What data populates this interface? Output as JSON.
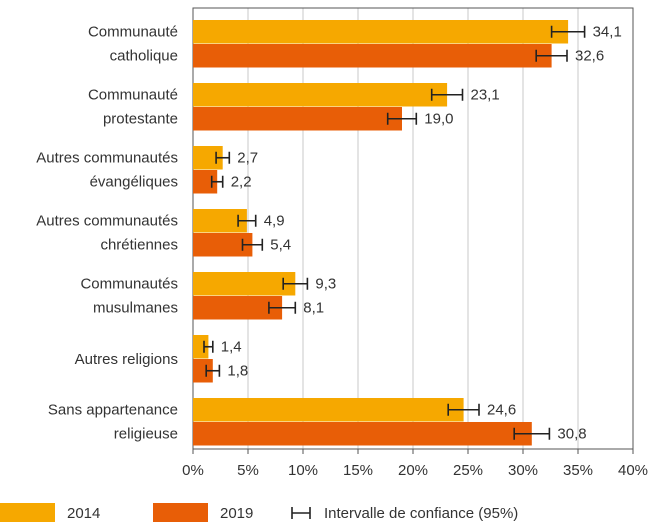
{
  "chart_data": {
    "type": "bar",
    "orientation": "horizontal",
    "categories": [
      [
        "Communauté",
        "catholique"
      ],
      [
        "Communauté",
        "protestante"
      ],
      [
        "Autres communautés",
        "évangéliques"
      ],
      [
        "Autres communautés",
        "chrétiennes"
      ],
      [
        "Communautés",
        "musulmanes"
      ],
      [
        "Autres religions"
      ],
      [
        "Sans appartenance",
        "religieuse"
      ]
    ],
    "series": [
      {
        "name": "2014",
        "color": "#f6a800",
        "values": [
          34.1,
          23.1,
          2.7,
          4.9,
          9.3,
          1.4,
          24.6
        ],
        "value_labels": [
          "34,1",
          "23,1",
          "2,7",
          "4,9",
          "9,3",
          "1,4",
          "24,6"
        ],
        "errors": [
          1.5,
          1.4,
          0.6,
          0.8,
          1.1,
          0.4,
          1.4
        ]
      },
      {
        "name": "2019",
        "color": "#e85e07",
        "values": [
          32.6,
          19.0,
          2.2,
          5.4,
          8.1,
          1.8,
          30.8
        ],
        "value_labels": [
          "32,6",
          "19,0",
          "2,2",
          "5,4",
          "8,1",
          "1,8",
          "30,8"
        ],
        "errors": [
          1.4,
          1.3,
          0.5,
          0.9,
          1.2,
          0.6,
          1.6
        ]
      }
    ],
    "error_legend": "Intervalle de confiance (95%)",
    "xlim": [
      0,
      40
    ],
    "xticks": [
      {
        "value": 0,
        "label": "0%"
      },
      {
        "value": 5,
        "label": "5%"
      },
      {
        "value": 10,
        "label": "10%"
      },
      {
        "value": 15,
        "label": "15%"
      },
      {
        "value": 20,
        "label": "20%"
      },
      {
        "value": 25,
        "label": "25%"
      },
      {
        "value": 30,
        "label": "30%"
      },
      {
        "value": 35,
        "label": "35%"
      },
      {
        "value": 40,
        "label": "40%"
      }
    ],
    "grid": true
  }
}
